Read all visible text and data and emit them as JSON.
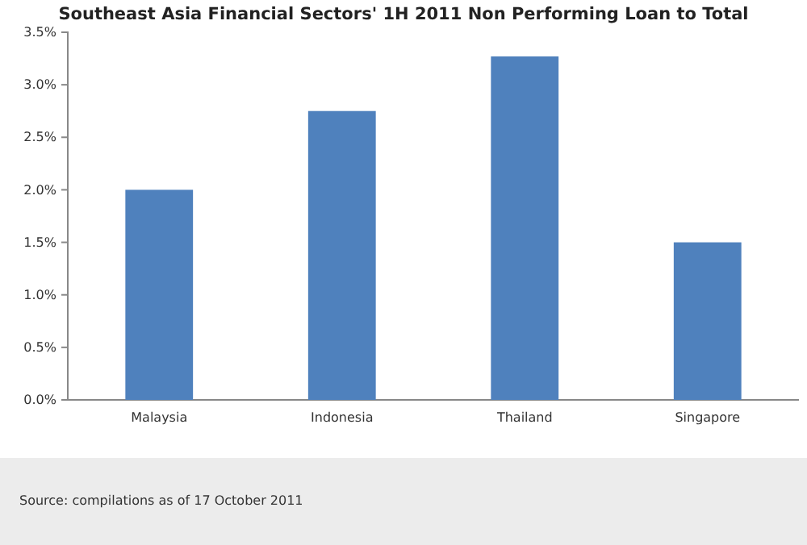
{
  "chart_data": {
    "type": "bar",
    "title": "Southeast Asia Financial Sectors' 1H 2011 Non Performing Loan to Total",
    "categories": [
      "Malaysia",
      "Indonesia",
      "Thailand",
      "Singapore"
    ],
    "values": [
      2.0,
      2.75,
      3.27,
      1.5
    ],
    "color": "#4f81bd",
    "ylim": [
      0,
      3.5
    ],
    "yticks": [
      {
        "value": 0,
        "label": "0.0%"
      },
      {
        "value": 0.5,
        "label": "0.5%"
      },
      {
        "value": 1,
        "label": "1.0%"
      },
      {
        "value": 1.5,
        "label": "1.5%"
      },
      {
        "value": 2,
        "label": "2.0%"
      },
      {
        "value": 2.5,
        "label": "2.5%"
      },
      {
        "value": 3,
        "label": "3.0%"
      },
      {
        "value": 3.5,
        "label": "3.5%"
      }
    ],
    "grid": false,
    "annotations": [
      "Source: compilations as of 17 October 2011"
    ]
  }
}
